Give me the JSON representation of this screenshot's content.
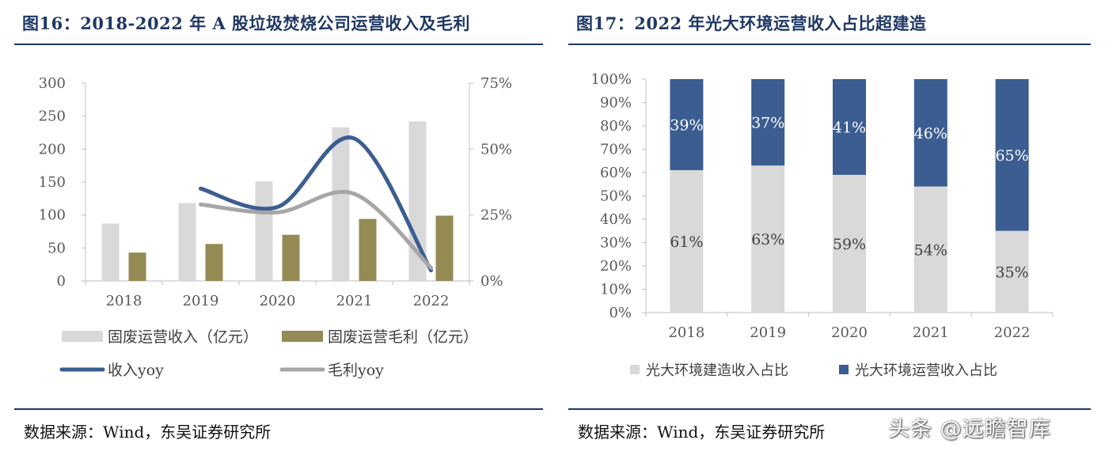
{
  "left_panel": {
    "title": "图16：2018-2022 年 A 股垃圾焚烧公司运营收入及毛利",
    "source": "数据来源：Wind，东吴证券研究所"
  },
  "right_panel": {
    "title": "图17：2022 年光大环境运营收入占比超建造",
    "source": "数据来源：Wind，东吴证券研究所"
  },
  "watermark": "头条 @远瞻智库",
  "colors": {
    "title": "#1f3864",
    "revenue_bar": "#d9d9d9",
    "profit_bar": "#948a54",
    "revenue_yoy_line": "#3b5d91",
    "profit_yoy_line": "#a6a6a6",
    "operation_bar": "#3b5d91",
    "construction_bar": "#d9d9d9"
  },
  "chart_data": [
    {
      "type": "bar",
      "categories": [
        "2018",
        "2019",
        "2020",
        "2021",
        "2022"
      ],
      "series": [
        {
          "name": "固废运营收入（亿元）",
          "kind": "bar",
          "axis": "left",
          "values": [
            87,
            118,
            151,
            233,
            242
          ]
        },
        {
          "name": "固废运营毛利（亿元）",
          "kind": "bar",
          "axis": "left",
          "values": [
            43,
            56,
            70,
            94,
            99
          ]
        },
        {
          "name": "收入yoy",
          "kind": "line",
          "axis": "right",
          "values": [
            null,
            35,
            28,
            54,
            4
          ]
        },
        {
          "name": "毛利yoy",
          "kind": "line",
          "axis": "right",
          "values": [
            null,
            29,
            26,
            33,
            5
          ]
        }
      ],
      "y_left": {
        "min": 0,
        "max": 300,
        "ticks": [
          "0",
          "50",
          "100",
          "150",
          "200",
          "250",
          "300"
        ]
      },
      "y_right": {
        "min": 0,
        "max": 75,
        "ticks": [
          "0%",
          "25%",
          "50%",
          "75%"
        ]
      },
      "legend_position": "bottom"
    },
    {
      "type": "bar",
      "stacked": true,
      "categories": [
        "2018",
        "2019",
        "2020",
        "2021",
        "2022"
      ],
      "series": [
        {
          "name": "光大环境建造收入占比",
          "values": [
            61,
            63,
            59,
            54,
            35
          ],
          "labels": [
            "61%",
            "63%",
            "59%",
            "54%",
            "35%"
          ]
        },
        {
          "name": "光大环境运营收入占比",
          "values": [
            39,
            37,
            41,
            46,
            65
          ],
          "labels": [
            "39%",
            "37%",
            "41%",
            "46%",
            "65%"
          ]
        }
      ],
      "y": {
        "min": 0,
        "max": 100,
        "ticks": [
          "0%",
          "10%",
          "20%",
          "30%",
          "40%",
          "50%",
          "60%",
          "70%",
          "80%",
          "90%",
          "100%"
        ]
      },
      "legend_position": "bottom"
    }
  ]
}
